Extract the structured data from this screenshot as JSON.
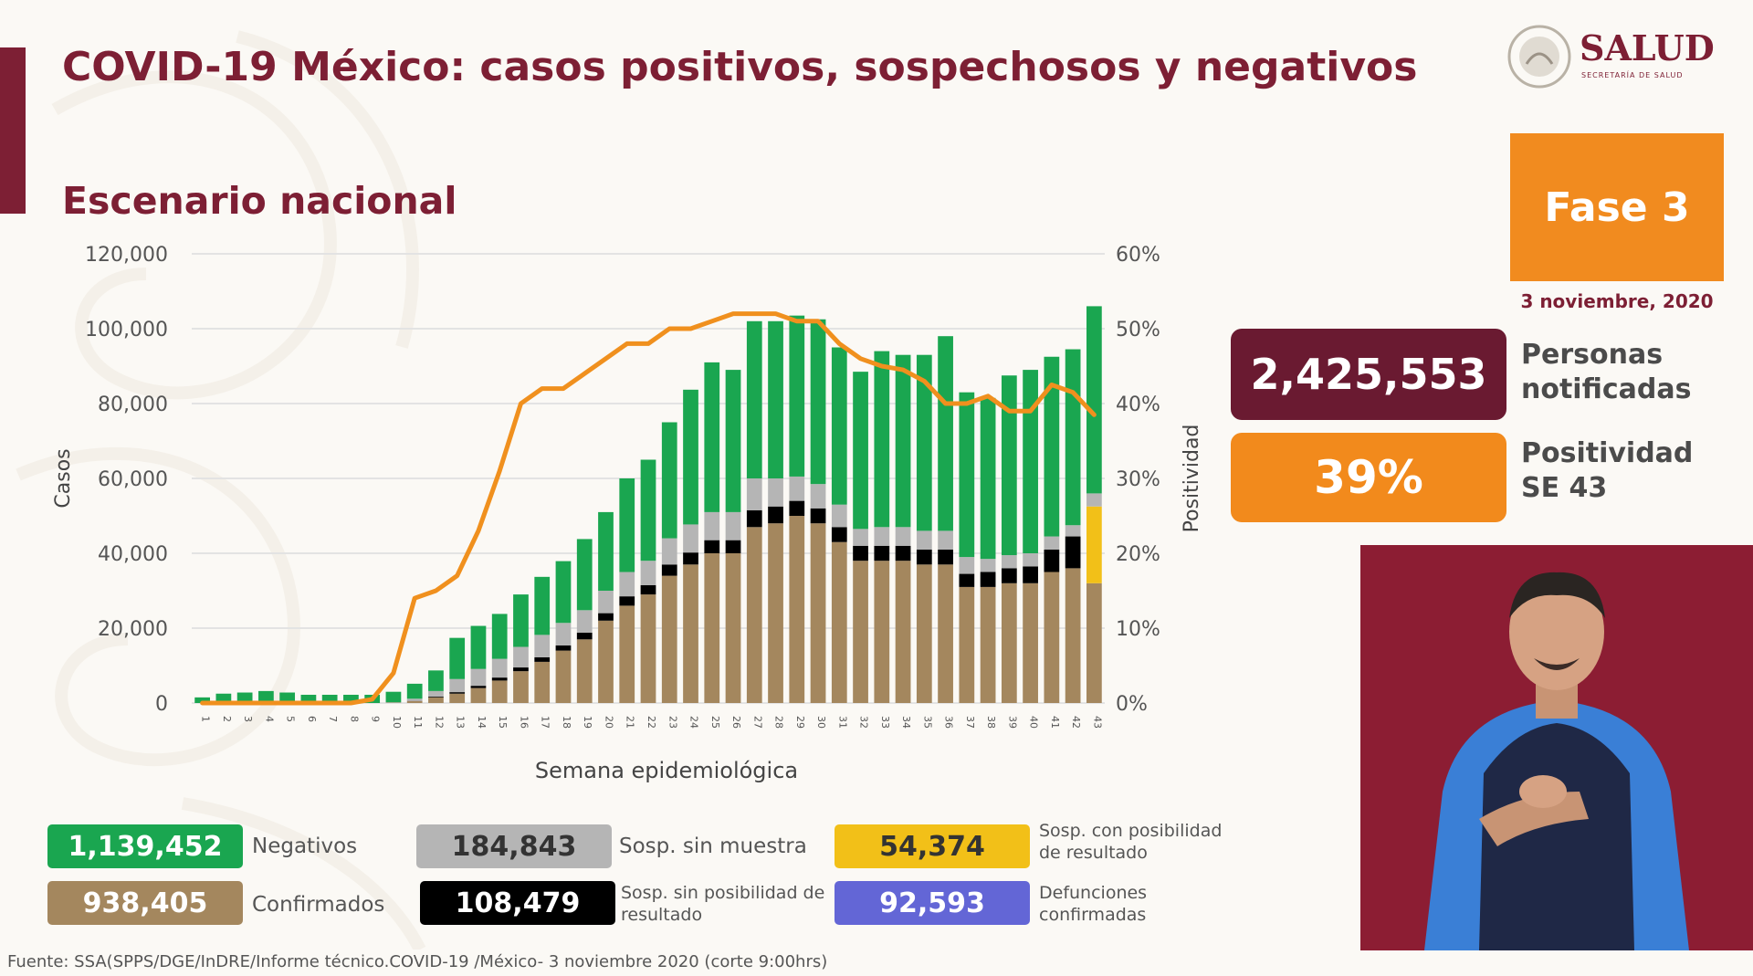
{
  "header": {
    "title": "COVID-19 México: casos positivos, sospechosos y negativos",
    "subtitle": "Escenario nacional",
    "logo_text": "SALUD",
    "logo_subtext": "SECRETARÍA DE SALUD"
  },
  "colors": {
    "accent": "#7d1f34",
    "orange": "#f18b1f",
    "negativos": "#1aa650",
    "confirmados": "#a4875e",
    "sosp_sin_muestra": "#b5b5b5",
    "sosp_sin_posibilidad": "#000000",
    "sosp_con_posibilidad": "#f2c018",
    "defunciones": "#6366d6",
    "positividad_line": "#f0901e"
  },
  "side_panel": {
    "fase_label": "Fase 3",
    "date": "3 noviembre, 2020",
    "personas_value": "2,425,553",
    "personas_label_1": "Personas",
    "personas_label_2": "notificadas",
    "positividad_value": "39%",
    "positividad_label_1": "Positividad",
    "positividad_label_2": "SE 43"
  },
  "legend": {
    "negativos_value": "1,139,452",
    "negativos_label": "Negativos",
    "confirmados_value": "938,405",
    "confirmados_label": "Confirmados",
    "sin_muestra_value": "184,843",
    "sin_muestra_label": "Sosp. sin muestra",
    "sin_posibilidad_value": "108,479",
    "sin_posibilidad_label": "Sosp. sin posibilidad de resultado",
    "con_posibilidad_value": "54,374",
    "con_posibilidad_label": "Sosp. con posibilidad de resultado",
    "defunciones_value": "92,593",
    "defunciones_label": "Defunciones confirmadas"
  },
  "source": "Fuente: SSA(SPPS/DGE/InDRE/Informe técnico.COVID-19 /México- 3 noviembre 2020 (corte 9:00hrs)",
  "chart_data": {
    "type": "bar",
    "stacked": true,
    "xlabel": "Semana epidemiológica",
    "ylabel": "Casos",
    "y2label": "Positividad",
    "ylim": [
      0,
      120000
    ],
    "y2lim": [
      0,
      60
    ],
    "yticks": [
      "0",
      "20,000",
      "40,000",
      "60,000",
      "80,000",
      "100,000",
      "120,000"
    ],
    "y2ticks": [
      "0%",
      "10%",
      "20%",
      "30%",
      "40%",
      "50%",
      "60%"
    ],
    "grid": true,
    "categories": [
      "1",
      "2",
      "3",
      "4",
      "5",
      "6",
      "7",
      "8",
      "9",
      "10",
      "11",
      "12",
      "13",
      "14",
      "15",
      "16",
      "17",
      "18",
      "19",
      "20",
      "21",
      "22",
      "23",
      "24",
      "25",
      "26",
      "27",
      "28",
      "29",
      "30",
      "31",
      "32",
      "33",
      "34",
      "35",
      "36",
      "37",
      "38",
      "39",
      "40",
      "41",
      "42",
      "43"
    ],
    "series": [
      {
        "name": "Confirmados",
        "color": "#a4875e",
        "values": [
          0,
          0,
          0,
          0,
          0,
          0,
          0,
          0,
          0,
          100,
          500,
          1500,
          2500,
          4000,
          6000,
          8500,
          11000,
          14000,
          17000,
          22000,
          26000,
          29000,
          34000,
          37000,
          40000,
          40000,
          47000,
          48000,
          50000,
          48000,
          43000,
          38000,
          38000,
          38000,
          37000,
          37000,
          31000,
          31000,
          32000,
          32000,
          35000,
          36000,
          32000
        ]
      },
      {
        "name": "Sosp. sin posibilidad de resultado",
        "color": "#000000",
        "values": [
          0,
          0,
          0,
          0,
          0,
          0,
          0,
          0,
          0,
          0,
          50,
          200,
          400,
          600,
          800,
          1000,
          1200,
          1400,
          1800,
          2000,
          2500,
          2500,
          3000,
          3200,
          3500,
          3500,
          4500,
          4500,
          4000,
          4000,
          4000,
          4000,
          4000,
          4000,
          4000,
          4000,
          3500,
          4000,
          4000,
          4500,
          6000,
          8500,
          0
        ]
      },
      {
        "name": "Sosp. con posibilidad de resultado",
        "color": "#f2c018",
        "values": [
          0,
          0,
          0,
          0,
          0,
          0,
          0,
          0,
          0,
          0,
          0,
          0,
          0,
          0,
          0,
          0,
          0,
          0,
          0,
          0,
          0,
          0,
          0,
          0,
          0,
          0,
          0,
          0,
          0,
          0,
          0,
          0,
          0,
          0,
          0,
          0,
          0,
          0,
          0,
          0,
          0,
          0,
          20500
        ]
      },
      {
        "name": "Sosp. sin muestra",
        "color": "#b5b5b5",
        "values": [
          0,
          0,
          0,
          0,
          0,
          0,
          0,
          0,
          0,
          100,
          600,
          1500,
          3500,
          4500,
          5000,
          5500,
          6000,
          6000,
          6000,
          6000,
          6500,
          6500,
          7000,
          7500,
          7500,
          7500,
          8500,
          7500,
          6500,
          6500,
          6000,
          4500,
          5000,
          5000,
          5000,
          5000,
          4500,
          3500,
          3500,
          3500,
          3500,
          3000,
          3500
        ]
      },
      {
        "name": "Negativos",
        "color": "#1aa650",
        "values": [
          1500,
          2500,
          2800,
          3200,
          2800,
          2200,
          2200,
          2200,
          2200,
          2800,
          4000,
          5500,
          11000,
          11500,
          12000,
          14000,
          15500,
          16500,
          19000,
          21000,
          25000,
          27000,
          31000,
          36000,
          40000,
          38000,
          42000,
          42000,
          43000,
          44000,
          42000,
          42000,
          47000,
          46000,
          47000,
          52000,
          44000,
          43000,
          48000,
          49000,
          48000,
          47000,
          50000
        ]
      }
    ],
    "positividad": {
      "name": "Positividad",
      "unit": "%",
      "color": "#f0901e",
      "values": [
        0,
        0,
        0,
        0,
        0,
        0,
        0,
        0,
        0.5,
        4,
        14,
        15,
        17,
        23,
        31,
        40,
        42,
        42,
        44,
        46,
        48,
        48,
        50,
        50,
        51,
        52,
        52,
        52,
        51,
        51,
        48,
        46,
        45,
        44.5,
        43,
        40,
        40,
        41,
        39,
        39,
        42.5,
        41.5,
        38.5
      ]
    }
  }
}
